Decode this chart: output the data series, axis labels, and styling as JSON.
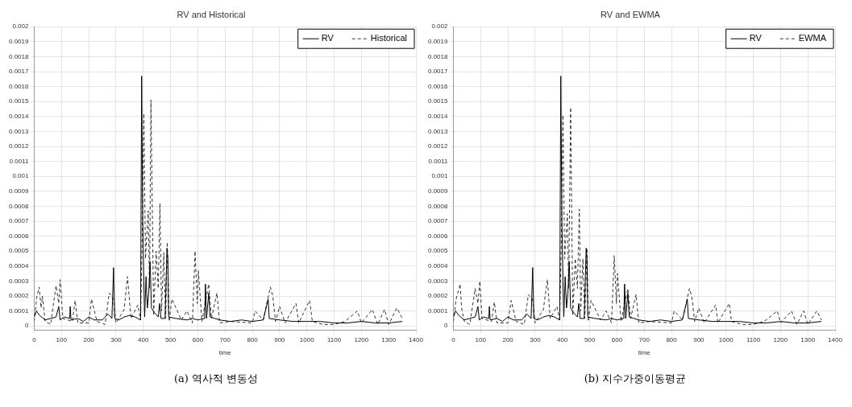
{
  "chart_data": [
    {
      "type": "line",
      "title": "RV and Historical",
      "xlabel": "time",
      "xlim": [
        0,
        1400
      ],
      "xticks": [
        0,
        100,
        200,
        300,
        400,
        500,
        600,
        700,
        800,
        900,
        1000,
        1100,
        1200,
        1300,
        1400
      ],
      "ylim": [
        -3e-05,
        0.002
      ],
      "yticks": [
        0,
        0.0001,
        0.0002,
        0.0003,
        0.0004,
        0.0005,
        0.0006,
        0.0007,
        0.0008,
        0.0009,
        0.001,
        0.0011,
        0.0012,
        0.0013,
        0.0014,
        0.0015,
        0.0016,
        0.0017,
        0.0018,
        0.0019,
        0.002
      ],
      "grid": true,
      "legend": "top right",
      "marker": "none",
      "annotations": [
        "(a) 역사적 변동성"
      ],
      "series": [
        {
          "name": "RV",
          "color": "#000000",
          "line_style": "solid",
          "x": [
            0,
            8,
            20,
            40,
            60,
            80,
            90,
            95,
            110,
            130,
            132,
            135,
            160,
            180,
            200,
            220,
            250,
            270,
            285,
            291,
            295,
            310,
            330,
            350,
            370,
            390,
            394,
            398,
            402,
            405,
            410,
            415,
            420,
            425,
            430,
            440,
            455,
            460,
            465,
            480,
            487,
            490,
            493,
            520,
            560,
            580,
            600,
            625,
            628,
            632,
            640,
            645,
            680,
            720,
            760,
            800,
            840,
            858,
            862,
            900,
            950,
            1000,
            1050,
            1100,
            1150,
            1200,
            1250,
            1300,
            1350
          ],
          "values": [
            6e-05,
            0.0001,
            7e-05,
            4e-05,
            5e-05,
            6e-05,
            0.00013,
            4e-05,
            6e-05,
            5e-05,
            0.00013,
            4e-05,
            5e-05,
            3e-05,
            6e-05,
            4e-05,
            4e-05,
            8e-05,
            5e-05,
            0.00039,
            5e-05,
            4e-05,
            6e-05,
            7e-05,
            6e-05,
            4e-05,
            0.00167,
            0.0007,
            0.0003,
            6e-05,
            0.00033,
            0.00012,
            0.00022,
            0.00043,
            0.00012,
            9e-05,
            6e-05,
            0.00015,
            5e-05,
            5e-05,
            0.00052,
            0.00045,
            6e-05,
            5e-05,
            4e-05,
            5e-05,
            4e-05,
            5e-05,
            0.00028,
            5e-05,
            0.00022,
            6e-05,
            4e-05,
            3e-05,
            4e-05,
            3e-05,
            4e-05,
            0.00018,
            5e-05,
            4e-05,
            3e-05,
            3e-05,
            3e-05,
            2e-05,
            2e-05,
            3e-05,
            2e-05,
            2e-05,
            3e-05
          ]
        },
        {
          "name": "Historical",
          "color": "#333333",
          "line_style": "dashed",
          "x": [
            0,
            10,
            18,
            25,
            30,
            40,
            60,
            80,
            90,
            95,
            105,
            140,
            150,
            160,
            200,
            210,
            230,
            260,
            275,
            290,
            300,
            330,
            342,
            355,
            380,
            390,
            396,
            402,
            408,
            418,
            423,
            428,
            438,
            447,
            455,
            461,
            467,
            475,
            482,
            488,
            495,
            505,
            540,
            560,
            580,
            590,
            598,
            602,
            615,
            640,
            650,
            670,
            680,
            720,
            800,
            810,
            840,
            866,
            875,
            885,
            900,
            920,
            960,
            970,
            1010,
            1020,
            1060,
            1100,
            1140,
            1185,
            1200,
            1240,
            1260,
            1285,
            1300,
            1330,
            1350
          ],
          "values": [
            3e-05,
            0.0002,
            0.00026,
            0.00012,
            0.0002,
            3e-05,
            1e-05,
            0.00027,
            0.00015,
            0.00031,
            5e-05,
            3e-05,
            0.00017,
            2e-05,
            2e-05,
            0.00018,
            3e-05,
            1e-05,
            0.00022,
            0.00018,
            2e-05,
            0.00011,
            0.00033,
            5e-05,
            0.00014,
            4e-05,
            0.0006,
            0.00142,
            0.00045,
            0.00077,
            0.00025,
            0.00151,
            7e-05,
            0.0005,
            0.00025,
            0.00082,
            0.0001,
            0.00049,
            5e-05,
            0.00056,
            3e-05,
            0.00018,
            4e-05,
            0.0001,
            2e-05,
            0.0005,
            0.00015,
            0.00037,
            3e-05,
            0.00028,
            5e-05,
            0.00022,
            2e-05,
            3e-05,
            2e-05,
            0.0001,
            4e-05,
            0.00026,
            0.0002,
            3e-05,
            0.00013,
            2e-05,
            0.00015,
            2e-05,
            0.00017,
            3e-05,
            1e-05,
            1e-05,
            3e-05,
            0.0001,
            2e-05,
            0.00011,
            1e-05,
            0.00011,
            1e-05,
            0.00012,
            5e-05
          ]
        }
      ]
    },
    {
      "type": "line",
      "title": "RV and EWMA",
      "xlabel": "time",
      "xlim": [
        0,
        1400
      ],
      "xticks": [
        0,
        100,
        200,
        300,
        400,
        500,
        600,
        700,
        800,
        900,
        1000,
        1100,
        1200,
        1300,
        1400
      ],
      "ylim": [
        -3e-05,
        0.002
      ],
      "yticks": [
        0,
        0.0001,
        0.0002,
        0.0003,
        0.0004,
        0.0005,
        0.0006,
        0.0007,
        0.0008,
        0.0009,
        0.001,
        0.0011,
        0.0012,
        0.0013,
        0.0014,
        0.0015,
        0.0016,
        0.0017,
        0.0018,
        0.0019,
        0.002
      ],
      "grid": true,
      "legend": "top right",
      "marker": "none",
      "annotations": [
        "(b) 지수가중이동평균"
      ],
      "series": [
        {
          "name": "RV",
          "color": "#000000",
          "line_style": "solid",
          "x": [
            0,
            8,
            20,
            40,
            60,
            80,
            90,
            95,
            110,
            130,
            132,
            135,
            160,
            180,
            200,
            220,
            250,
            270,
            285,
            291,
            295,
            310,
            330,
            350,
            370,
            390,
            394,
            398,
            402,
            405,
            410,
            415,
            420,
            425,
            430,
            440,
            455,
            460,
            465,
            480,
            487,
            490,
            493,
            520,
            560,
            580,
            600,
            625,
            628,
            632,
            640,
            645,
            680,
            720,
            760,
            800,
            840,
            858,
            862,
            900,
            950,
            1000,
            1050,
            1100,
            1150,
            1200,
            1250,
            1300,
            1350
          ],
          "values": [
            6e-05,
            0.0001,
            7e-05,
            4e-05,
            5e-05,
            6e-05,
            0.00013,
            4e-05,
            6e-05,
            5e-05,
            0.00013,
            4e-05,
            5e-05,
            3e-05,
            6e-05,
            4e-05,
            4e-05,
            8e-05,
            5e-05,
            0.00039,
            5e-05,
            4e-05,
            6e-05,
            7e-05,
            6e-05,
            4e-05,
            0.00167,
            0.0007,
            0.0003,
            6e-05,
            0.00033,
            0.00012,
            0.00022,
            0.00043,
            0.00012,
            9e-05,
            6e-05,
            0.00015,
            5e-05,
            5e-05,
            0.00052,
            0.00045,
            6e-05,
            5e-05,
            4e-05,
            5e-05,
            4e-05,
            5e-05,
            0.00028,
            5e-05,
            0.00022,
            6e-05,
            4e-05,
            3e-05,
            4e-05,
            3e-05,
            4e-05,
            0.00018,
            5e-05,
            4e-05,
            3e-05,
            3e-05,
            3e-05,
            2e-05,
            2e-05,
            3e-05,
            2e-05,
            2e-05,
            3e-05
          ]
        },
        {
          "name": "EWMA",
          "color": "#333333",
          "line_style": "dashed",
          "x": [
            0,
            10,
            25,
            30,
            40,
            60,
            80,
            90,
            97,
            105,
            140,
            150,
            160,
            200,
            212,
            230,
            260,
            275,
            290,
            300,
            330,
            345,
            355,
            380,
            390,
            396,
            402,
            408,
            418,
            423,
            430,
            438,
            447,
            455,
            462,
            467,
            475,
            482,
            490,
            495,
            505,
            540,
            560,
            580,
            590,
            598,
            602,
            615,
            640,
            650,
            670,
            680,
            720,
            800,
            810,
            840,
            866,
            875,
            885,
            900,
            920,
            962,
            970,
            1012,
            1020,
            1060,
            1100,
            1140,
            1188,
            1200,
            1240,
            1260,
            1285,
            1300,
            1333,
            1350
          ],
          "values": [
            3e-05,
            0.00018,
            0.00028,
            0.00012,
            3e-05,
            1e-05,
            0.00025,
            0.00015,
            0.0003,
            5e-05,
            3e-05,
            0.00016,
            2e-05,
            2e-05,
            0.00017,
            3e-05,
            1e-05,
            0.00021,
            0.00018,
            2e-05,
            0.00011,
            0.00031,
            5e-05,
            0.00013,
            4e-05,
            0.00058,
            0.00141,
            0.00045,
            0.00075,
            0.00025,
            0.00146,
            7e-05,
            0.00045,
            0.00025,
            0.00078,
            0.0001,
            0.00045,
            5e-05,
            0.00052,
            3e-05,
            0.00017,
            4e-05,
            0.0001,
            2e-05,
            0.00047,
            0.00015,
            0.00035,
            3e-05,
            0.00025,
            5e-05,
            0.00021,
            2e-05,
            3e-05,
            2e-05,
            0.0001,
            4e-05,
            0.00025,
            0.00019,
            3e-05,
            0.00012,
            2e-05,
            0.00014,
            2e-05,
            0.00015,
            3e-05,
            1e-05,
            1e-05,
            3e-05,
            0.0001,
            2e-05,
            0.0001,
            1e-05,
            0.0001,
            1e-05,
            0.0001,
            4e-05
          ]
        }
      ]
    }
  ]
}
